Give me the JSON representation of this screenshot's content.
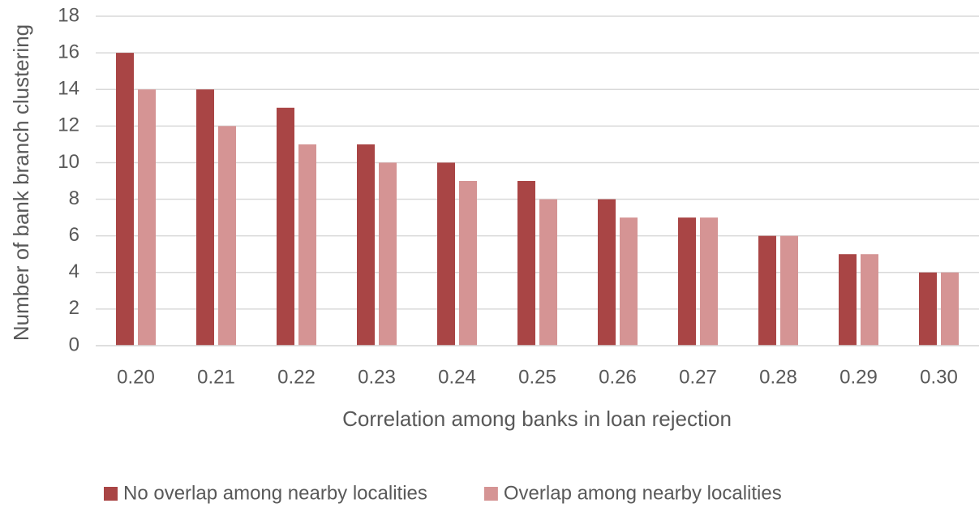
{
  "chart_data": {
    "type": "bar",
    "x_label": "Correlation among banks in loan rejection",
    "y_label": "Number of bank branch clustering",
    "categories": [
      "0.20",
      "0.21",
      "0.22",
      "0.23",
      "0.24",
      "0.25",
      "0.26",
      "0.27",
      "0.28",
      "0.29",
      "0.30"
    ],
    "series": [
      {
        "name": "No overlap among nearby localities",
        "color": "#a94545",
        "values": [
          16,
          14,
          13,
          11,
          10,
          9,
          8,
          7,
          6,
          5,
          4
        ]
      },
      {
        "name": "Overlap among nearby localities",
        "color": "#d59494",
        "values": [
          14,
          12,
          11,
          10,
          9,
          8,
          7,
          7,
          6,
          5,
          4
        ]
      }
    ],
    "ylim": [
      0,
      18
    ],
    "yticks": [
      0,
      2,
      4,
      6,
      8,
      10,
      12,
      14,
      16,
      18
    ],
    "grid": true,
    "legend": "bottom"
  }
}
